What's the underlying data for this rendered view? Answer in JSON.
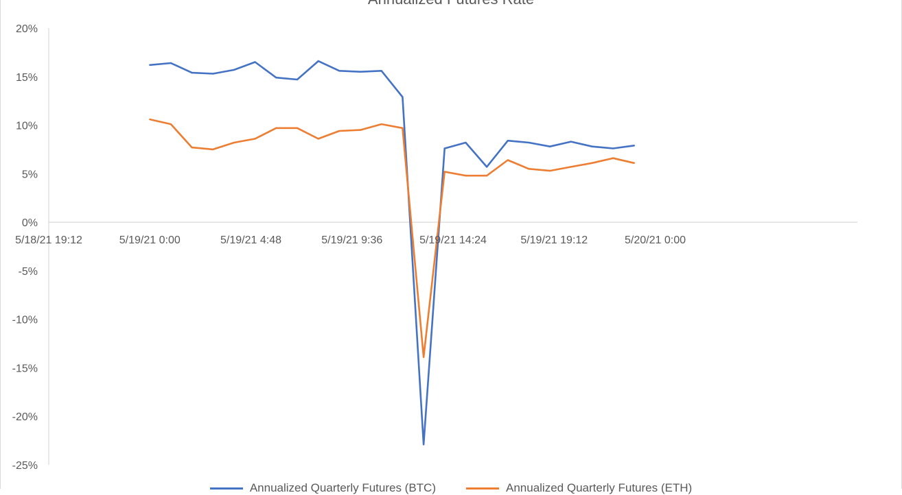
{
  "chart_data": {
    "type": "line",
    "title": "Annualized Futures Rate",
    "xlabel": "",
    "ylabel": "",
    "x_tick_labels": [
      "5/18/21 19:12",
      "5/19/21 0:00",
      "5/19/21 4:48",
      "5/19/21 9:36",
      "5/19/21 14:24",
      "5/19/21 19:12",
      "5/20/21 0:00"
    ],
    "y_tick_labels": [
      "20%",
      "15%",
      "10%",
      "5%",
      "0%",
      "-5%",
      "-10%",
      "-15%",
      "-20%",
      "-25%"
    ],
    "ylim": [
      -0.25,
      0.2
    ],
    "xlim": [
      "5/18/21 19:12",
      "5/20/21 9:36"
    ],
    "grid": false,
    "legend_position": "bottom",
    "x": [
      "5/19/21 0:00",
      "5/19/21 1:00",
      "5/19/21 2:00",
      "5/19/21 3:00",
      "5/19/21 4:00",
      "5/19/21 5:00",
      "5/19/21 6:00",
      "5/19/21 7:00",
      "5/19/21 8:00",
      "5/19/21 9:00",
      "5/19/21 10:00",
      "5/19/21 11:00",
      "5/19/21 12:00",
      "5/19/21 13:00",
      "5/19/21 14:00",
      "5/19/21 15:00",
      "5/19/21 16:00",
      "5/19/21 17:00",
      "5/19/21 18:00",
      "5/19/21 19:00",
      "5/19/21 20:00",
      "5/19/21 21:00",
      "5/19/21 22:00",
      "5/19/21 23:00",
      "5/20/21 0:00"
    ],
    "series": [
      {
        "name": "Annualized Quarterly Futures (BTC)",
        "color": "#4472c4",
        "values": [
          0.162,
          0.164,
          0.154,
          0.153,
          0.157,
          0.165,
          0.149,
          0.147,
          0.166,
          0.156,
          0.155,
          0.156,
          0.129,
          -0.229,
          0.076,
          0.082,
          0.057,
          0.084,
          0.082,
          0.078,
          0.083,
          0.078,
          0.076,
          0.079,
          null
        ]
      },
      {
        "name": "Annualized Quarterly Futures (ETH)",
        "color": "#ed7d31",
        "values": [
          0.106,
          0.101,
          0.077,
          0.075,
          0.082,
          0.086,
          0.097,
          0.097,
          0.086,
          0.094,
          0.095,
          0.101,
          0.097,
          -0.139,
          0.052,
          0.048,
          0.048,
          0.064,
          0.055,
          0.053,
          0.057,
          0.061,
          0.066,
          0.061,
          null
        ]
      }
    ]
  }
}
